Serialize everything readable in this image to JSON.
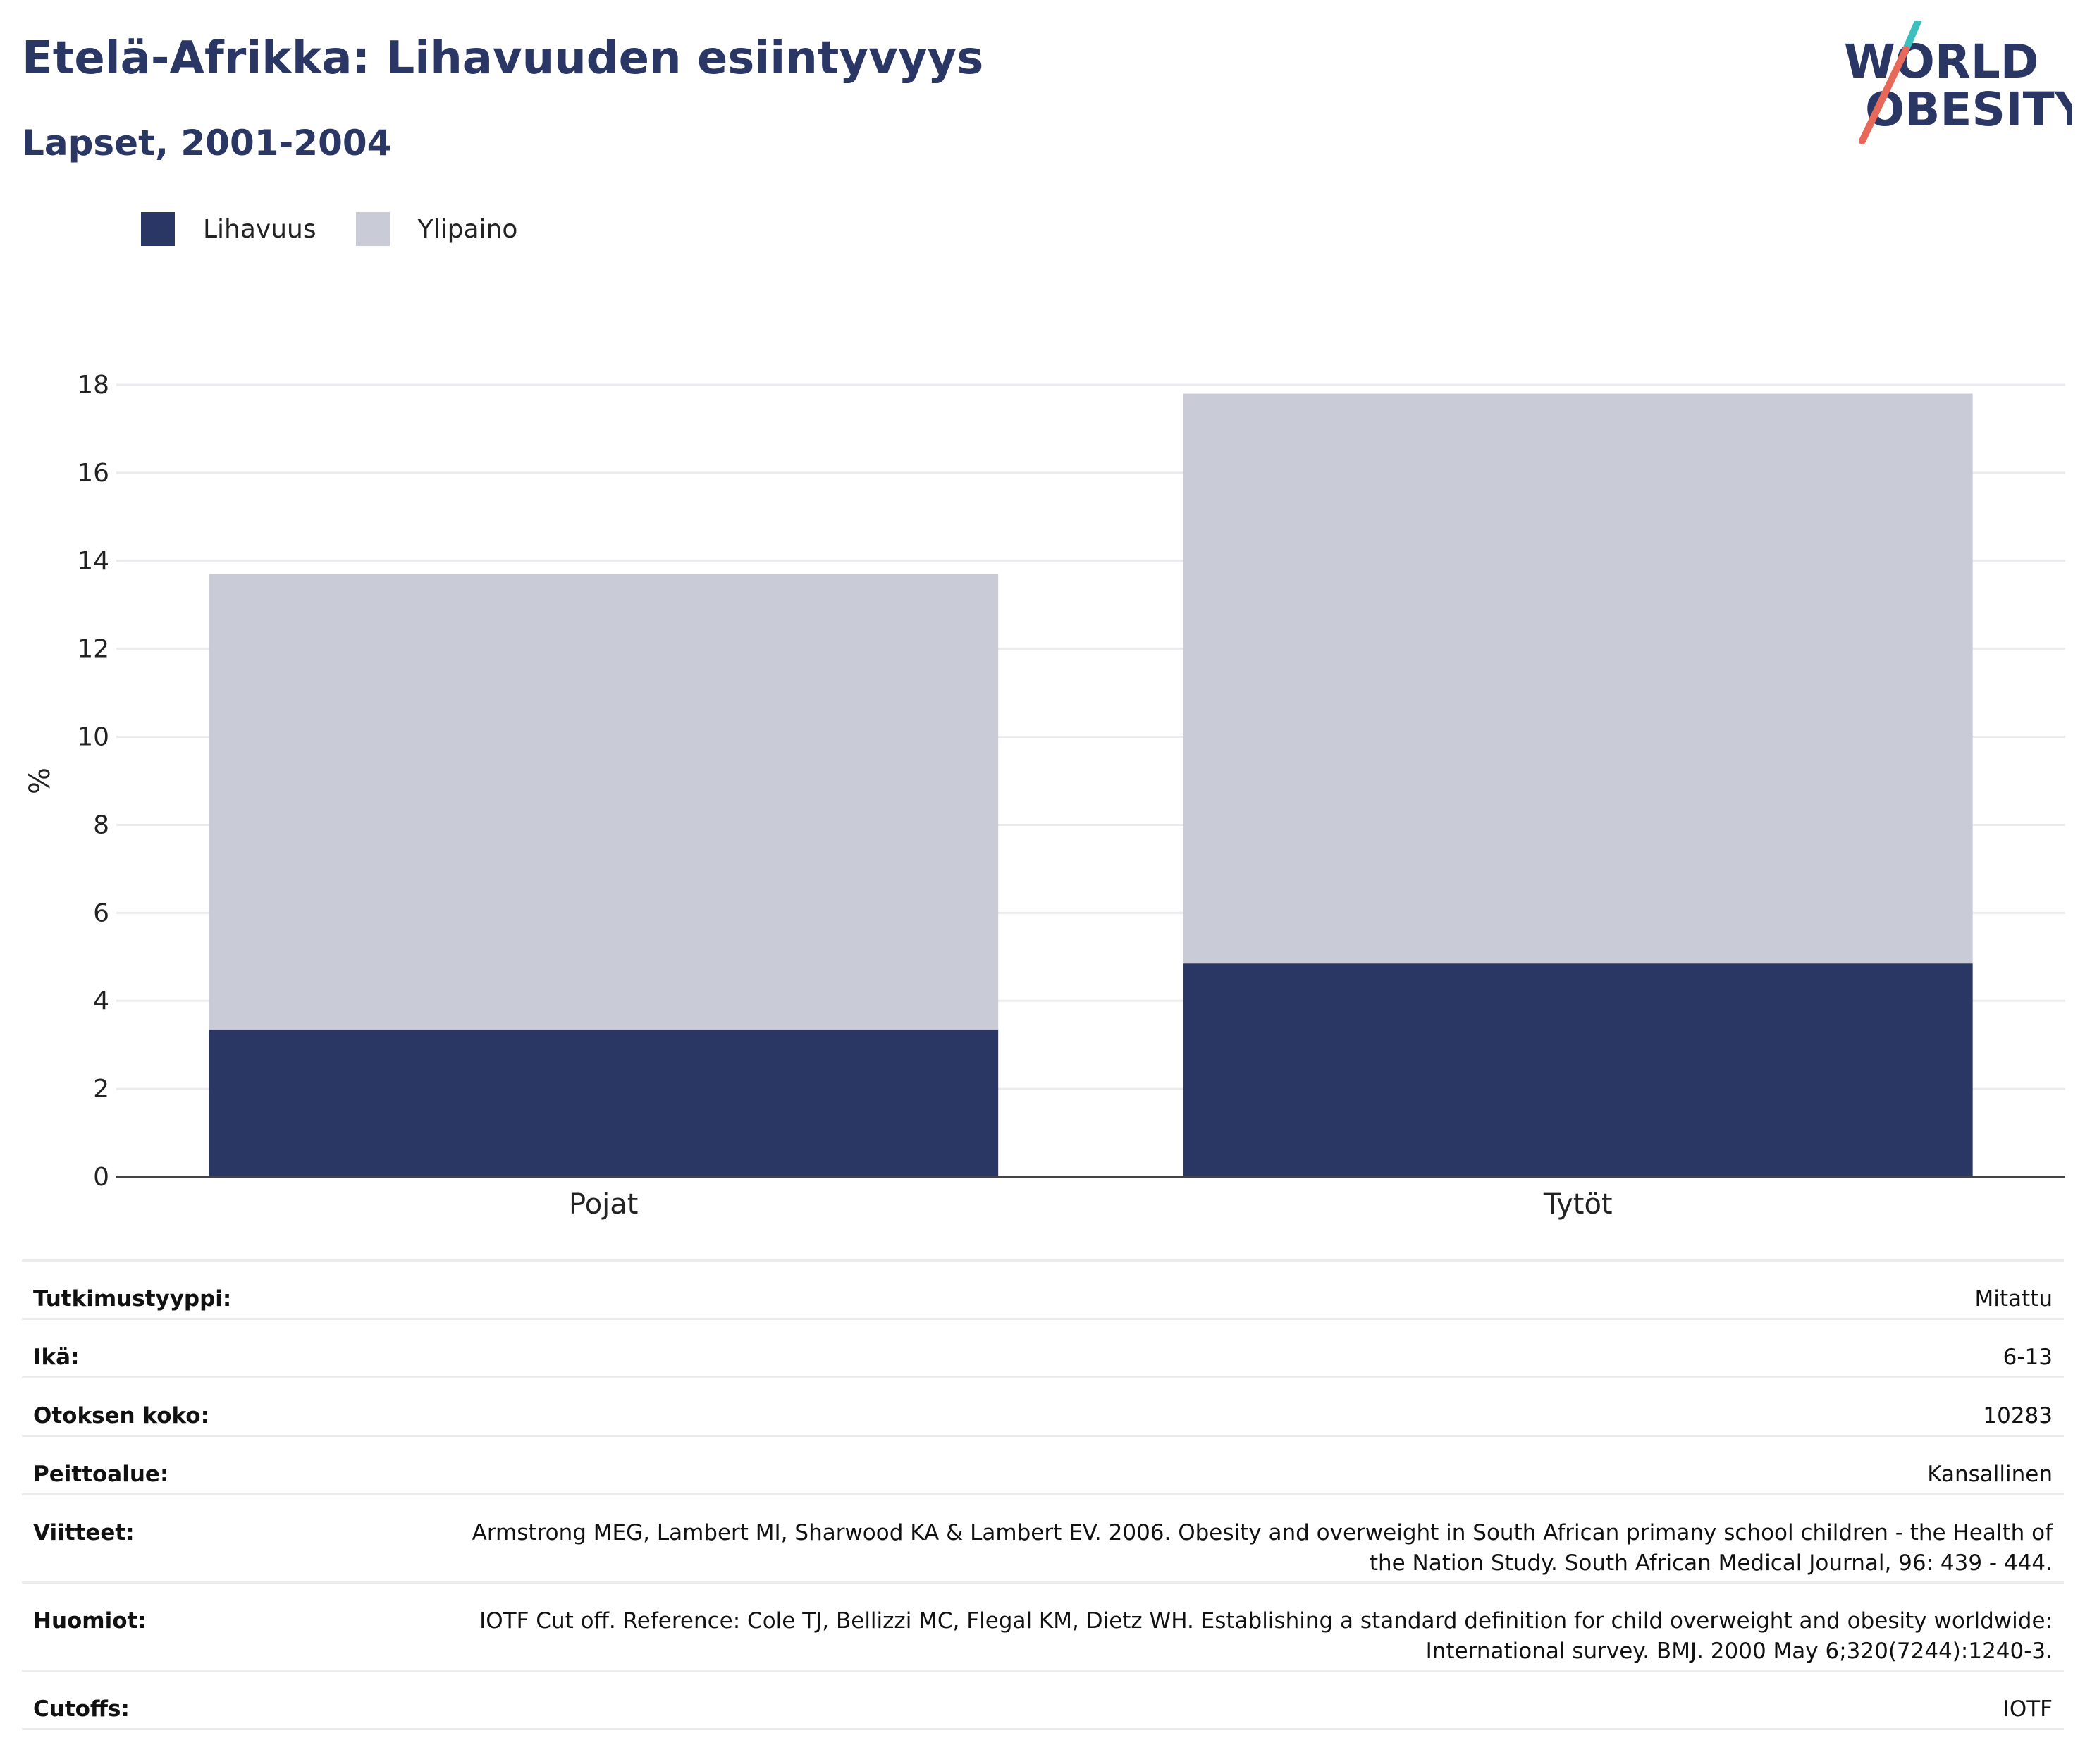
{
  "header": {
    "title": "Etelä-Afrikka: Lihavuuden esiintyvyys",
    "subtitle": "Lapset, 2001-2004"
  },
  "logo": {
    "line1": "WORLD",
    "line2": "OBESITY"
  },
  "colors": {
    "obesity": "#2a3664",
    "overweight": "#c9cbd7",
    "accent_teal": "#3cbfbf",
    "accent_red": "#e8685a",
    "grid": "#ebebf0",
    "axis": "#444444"
  },
  "chart_data": {
    "type": "bar",
    "stacked": true,
    "categories": [
      "Pojat",
      "Tytöt"
    ],
    "series": [
      {
        "name": "Lihavuus",
        "values": [
          3.35,
          4.85
        ]
      },
      {
        "name": "Ylipaino",
        "values": [
          10.35,
          12.95
        ]
      }
    ],
    "ylabel": "%",
    "ylim": [
      0,
      18
    ],
    "yticks": [
      0,
      2,
      4,
      6,
      8,
      10,
      12,
      14,
      16,
      18
    ],
    "grid": true,
    "legend_position": "top-left"
  },
  "info": [
    {
      "key": "Tutkimustyyppi:",
      "value": "Mitattu"
    },
    {
      "key": "Ikä:",
      "value": "6-13"
    },
    {
      "key": "Otoksen koko:",
      "value": "10283"
    },
    {
      "key": "Peittoalue:",
      "value": "Kansallinen"
    },
    {
      "key": "Viitteet:",
      "value": "Armstrong MEG, Lambert MI, Sharwood KA & Lambert EV. 2006. Obesity and overweight in South African primany school children - the Health of the Nation Study. South African Medical Journal, 96: 439 - 444."
    },
    {
      "key": "Huomiot:",
      "value": "IOTF Cut off. Reference: Cole TJ, Bellizzi MC, Flegal KM, Dietz WH. Establishing a standard definition for child overweight and obesity worldwide: International survey. BMJ. 2000 May 6;320(7244):1240-3."
    },
    {
      "key": "Cutoffs:",
      "value": "IOTF"
    }
  ]
}
